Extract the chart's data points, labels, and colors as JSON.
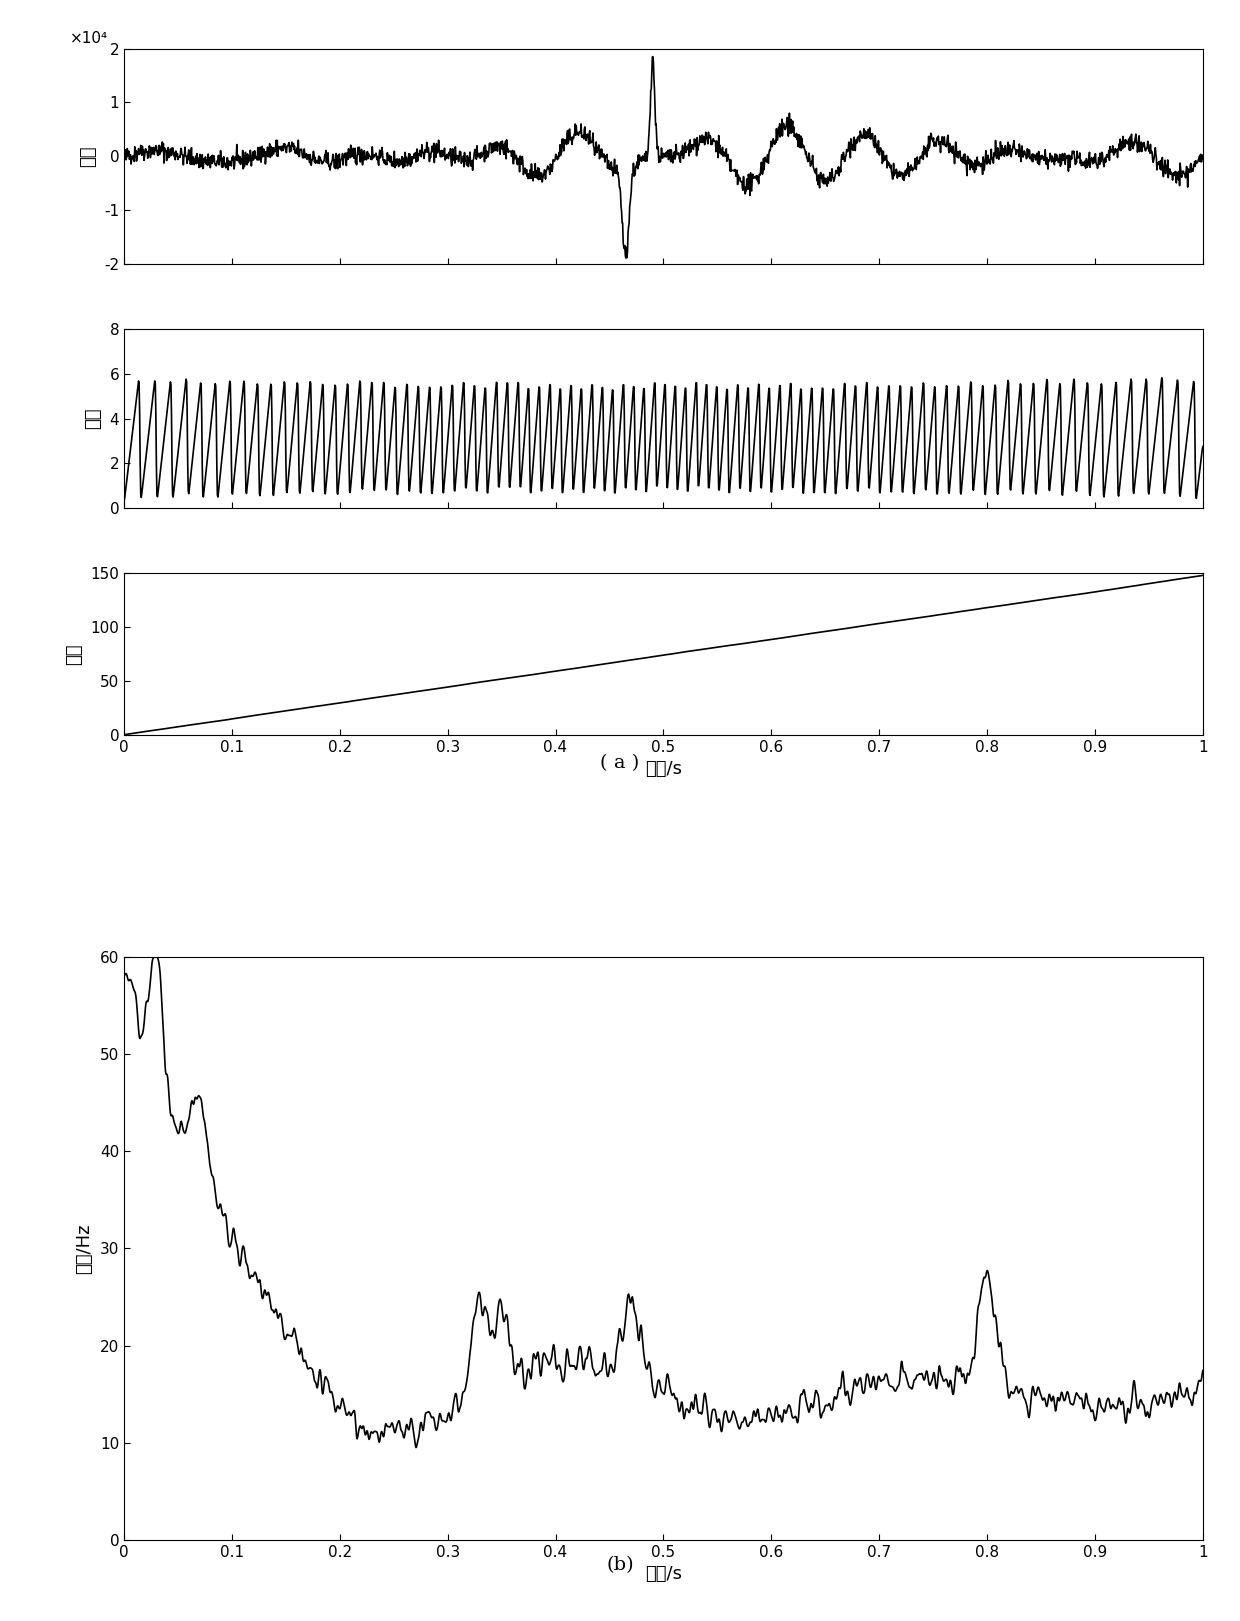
{
  "fig_width": 12.4,
  "fig_height": 16.21,
  "dpi": 100,
  "background_color": "#ffffff",
  "line_color": "#000000",
  "line_width": 1.2,
  "subplot_a_xlabel": "时间/s",
  "subplot_a_label": "( a )",
  "subplot_b_xlabel": "时间/s",
  "subplot_b_label": "(b)",
  "plot1_ylabel": "振幅",
  "plot1_ylim": [
    -20000,
    20000
  ],
  "plot1_yticks": [
    -20000,
    -10000,
    0,
    10000,
    20000
  ],
  "plot1_ytick_labels": [
    "-2",
    "-1",
    "0",
    "1",
    "2"
  ],
  "plot1_scale_label": "×10⁴",
  "plot2_ylabel": "相位",
  "plot2_ylim": [
    0,
    8
  ],
  "plot2_yticks": [
    0,
    2,
    4,
    6,
    8
  ],
  "plot3_ylabel": "相位",
  "plot3_ylim": [
    0,
    150
  ],
  "plot3_yticks": [
    0,
    50,
    100,
    150
  ],
  "plot4_ylabel": "频率/Hz",
  "plot4_ylim": [
    0,
    60
  ],
  "plot4_yticks": [
    0,
    10,
    20,
    30,
    40,
    50,
    60
  ],
  "xlim": [
    0,
    1
  ],
  "xticks": [
    0,
    0.1,
    0.2,
    0.3,
    0.4,
    0.5,
    0.6,
    0.7,
    0.8,
    0.9,
    1
  ],
  "xtick_labels": [
    "0",
    "0.1",
    "0.2",
    "0.3",
    "0.4",
    "0.5",
    "0.6",
    "0.7",
    "0.8",
    "0.9",
    "1"
  ],
  "seed": 42,
  "n_points": 2000
}
